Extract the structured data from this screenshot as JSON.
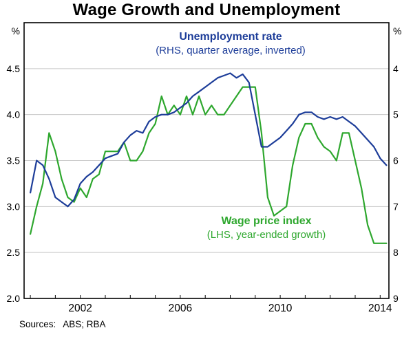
{
  "title": "Wage Growth and Unemployment",
  "source_note": {
    "label": "Sources:",
    "value": "ABS; RBA"
  },
  "annotations": {
    "unemployment": {
      "line1": "Unemployment rate",
      "line2": "(RHS, quarter average, inverted)"
    },
    "wage": {
      "line1": "Wage price index",
      "line2": "(LHS, year-ended growth)"
    }
  },
  "colors": {
    "unemployment_blue": "#1d3d99",
    "wage_green": "#2ea72e",
    "grid": "#c8c8c8",
    "axis": "#000000",
    "background": "#ffffff"
  },
  "axes": {
    "left_unit": "%",
    "right_unit": "%",
    "left_ticks": [
      {
        "label": "2.0",
        "value": 2.0
      },
      {
        "label": "2.5",
        "value": 2.5
      },
      {
        "label": "3.0",
        "value": 3.0
      },
      {
        "label": "3.5",
        "value": 3.5
      },
      {
        "label": "4.0",
        "value": 4.0
      },
      {
        "label": "4.5",
        "value": 4.5
      }
    ],
    "right_ticks": [
      {
        "label": "9",
        "value": 9
      },
      {
        "label": "8",
        "value": 8
      },
      {
        "label": "7",
        "value": 7
      },
      {
        "label": "6",
        "value": 6
      },
      {
        "label": "5",
        "value": 5
      },
      {
        "label": "4",
        "value": 4
      }
    ],
    "x_ticks": [
      {
        "label": "2002",
        "value": 2002
      },
      {
        "label": "2006",
        "value": 2006
      },
      {
        "label": "2010",
        "value": 2010
      },
      {
        "label": "2014",
        "value": 2014
      }
    ],
    "grid_values": [
      2.5,
      3.0,
      3.5,
      4.0,
      4.5
    ],
    "left_range": [
      2.0,
      5.0
    ],
    "x_range": [
      1999.75,
      2014.35
    ],
    "right_axis_map": {
      "right": [
        9,
        4
      ],
      "left": [
        2.0,
        4.5
      ]
    },
    "minor_tick_step": 1
  },
  "chart_data": {
    "type": "line",
    "title": "Wage Growth and Unemployment",
    "x_start": 2000.0,
    "x_step": 0.25,
    "grid": true,
    "series": [
      {
        "name": "Unemployment rate",
        "note": "RHS, quarter average, inverted",
        "axis": "rhs",
        "color": "#1d3d99",
        "values": [
          6.7,
          6.0,
          6.1,
          6.4,
          6.8,
          6.9,
          7.0,
          6.85,
          6.5,
          6.35,
          6.25,
          6.1,
          5.95,
          5.9,
          5.85,
          5.6,
          5.45,
          5.35,
          5.4,
          5.15,
          5.05,
          5.0,
          5.0,
          4.95,
          4.85,
          4.75,
          4.6,
          4.5,
          4.4,
          4.3,
          4.2,
          4.15,
          4.1,
          4.2,
          4.12,
          4.3,
          5.0,
          5.7,
          5.7,
          5.6,
          5.5,
          5.35,
          5.2,
          5.0,
          4.95,
          4.95,
          5.05,
          5.1,
          5.05,
          5.1,
          5.05,
          5.15,
          5.25,
          5.4,
          5.55,
          5.7,
          5.95,
          6.1
        ]
      },
      {
        "name": "Wage price index",
        "note": "LHS, year-ended growth",
        "axis": "lhs",
        "color": "#2ea72e",
        "values": [
          2.7,
          3.0,
          3.25,
          3.8,
          3.6,
          3.3,
          3.1,
          3.05,
          3.2,
          3.1,
          3.3,
          3.35,
          3.6,
          3.6,
          3.6,
          3.7,
          3.5,
          3.5,
          3.6,
          3.8,
          3.9,
          4.2,
          4.0,
          4.1,
          4.0,
          4.2,
          4.0,
          4.2,
          4.0,
          4.1,
          4.0,
          4.0,
          4.1,
          4.2,
          4.3,
          4.3,
          4.3,
          3.8,
          3.1,
          2.9,
          2.95,
          3.0,
          3.45,
          3.75,
          3.9,
          3.9,
          3.75,
          3.65,
          3.6,
          3.5,
          3.8,
          3.8,
          3.5,
          3.2,
          2.8,
          2.6,
          2.6,
          2.6
        ]
      }
    ]
  }
}
